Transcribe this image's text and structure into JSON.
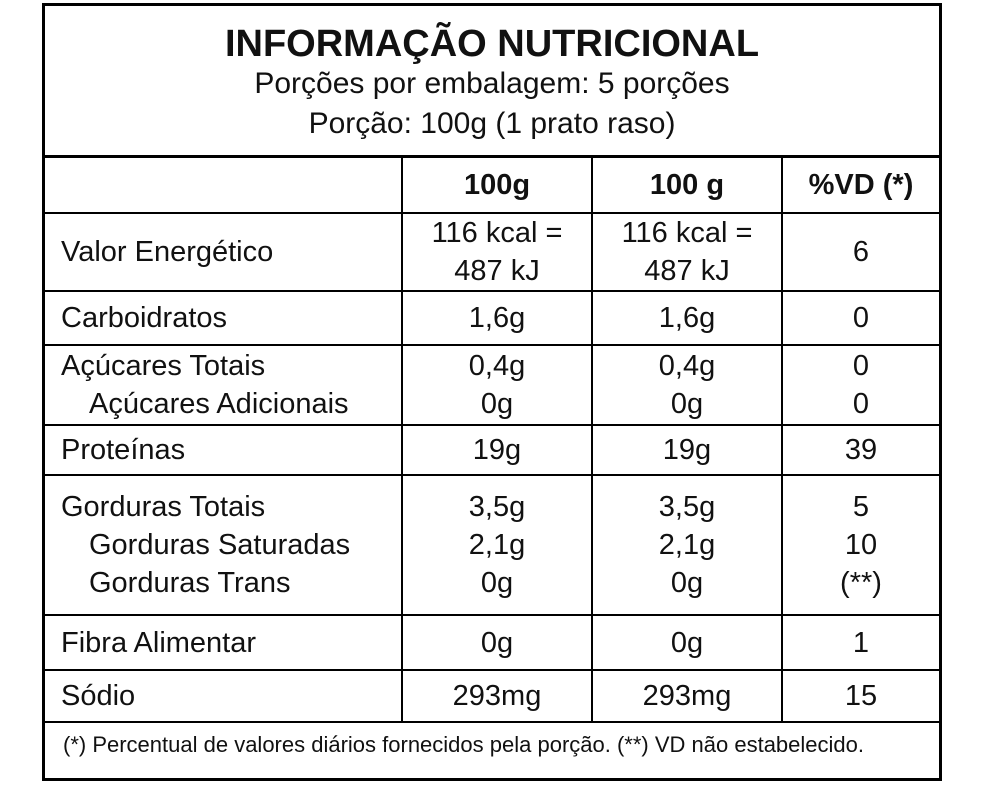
{
  "header": {
    "title": "INFORMAÇÃO NUTRICIONAL",
    "servings_per_package": "Porções por embalagem: 5 porções",
    "serving_size": "Porção: 100g (1 prato raso)"
  },
  "columns": [
    "",
    "100g",
    "100 g",
    "%VD (*)"
  ],
  "rows": {
    "energy": {
      "name": "Valor Energético",
      "c1a": "116 kcal =",
      "c1b": "487 kJ",
      "c2a": "116 kcal =",
      "c2b": "487 kJ",
      "vd": "6"
    },
    "carbs": {
      "name": "Carboidratos",
      "c1": "1,6g",
      "c2": "1,6g",
      "vd": "0"
    },
    "sugars": {
      "name": "Açúcares Totais",
      "c1": "0,4g",
      "c2": "0,4g",
      "vd": "0",
      "sub_name": "Açúcares Adicionais",
      "sub_c1": "0g",
      "sub_c2": "0g",
      "sub_vd": "0"
    },
    "protein": {
      "name": "Proteínas",
      "c1": "19g",
      "c2": "19g",
      "vd": "39"
    },
    "fat": {
      "name": "Gorduras Totais",
      "c1": "3,5g",
      "c2": "3,5g",
      "vd": "5",
      "sat_name": "Gorduras Saturadas",
      "sat_c1": "2,1g",
      "sat_c2": "2,1g",
      "sat_vd": "10",
      "trans_name": "Gorduras Trans",
      "trans_c1": "0g",
      "trans_c2": "0g",
      "trans_vd": "(**)"
    },
    "fiber": {
      "name": "Fibra Alimentar",
      "c1": "0g",
      "c2": "0g",
      "vd": "1"
    },
    "sodium": {
      "name": "Sódio",
      "c1": "293mg",
      "c2": "293mg",
      "vd": "15"
    }
  },
  "footnote": "(*) Percentual de valores diários fornecidos pela porção. (**) VD não estabelecido."
}
